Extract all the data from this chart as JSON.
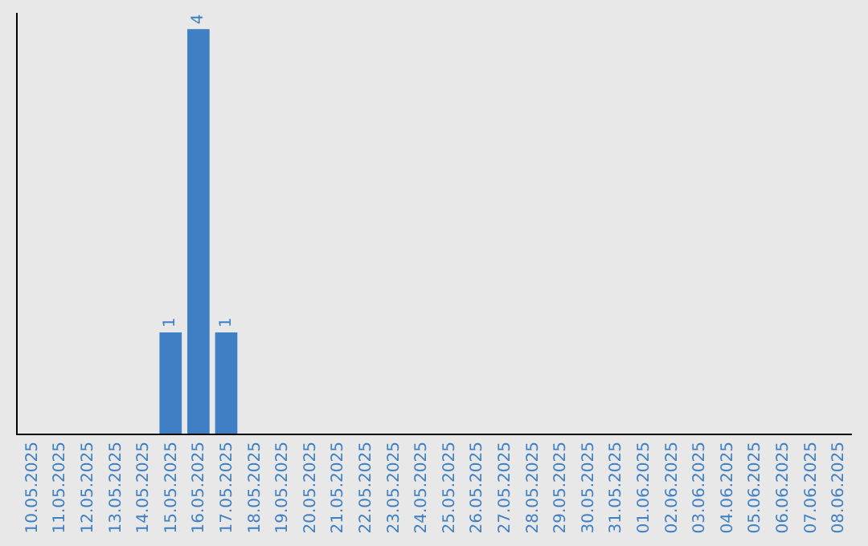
{
  "chart_data": {
    "type": "bar",
    "categories": [
      "10.05.2025",
      "11.05.2025",
      "12.05.2025",
      "13.05.2025",
      "14.05.2025",
      "15.05.2025",
      "16.05.2025",
      "17.05.2025",
      "18.05.2025",
      "19.05.2025",
      "20.05.2025",
      "21.05.2025",
      "22.05.2025",
      "23.05.2025",
      "24.05.2025",
      "25.05.2025",
      "26.05.2025",
      "27.05.2025",
      "28.05.2025",
      "29.05.2025",
      "30.05.2025",
      "31.05.2025",
      "01.06.2025",
      "02.06.2025",
      "03.06.2025",
      "04.06.2025",
      "05.06.2025",
      "06.06.2025",
      "07.06.2025",
      "08.06.2025"
    ],
    "values": [
      0,
      0,
      0,
      0,
      0,
      1,
      4,
      1,
      0,
      0,
      0,
      0,
      0,
      0,
      0,
      0,
      0,
      0,
      0,
      0,
      0,
      0,
      0,
      0,
      0,
      0,
      0,
      0,
      0,
      0
    ],
    "value_labels": [
      null,
      null,
      null,
      null,
      null,
      "1",
      "4",
      "1",
      null,
      null,
      null,
      null,
      null,
      null,
      null,
      null,
      null,
      null,
      null,
      null,
      null,
      null,
      null,
      null,
      null,
      null,
      null,
      null,
      null,
      null
    ],
    "color": "#3f7fc4",
    "grid": false,
    "legend": false,
    "tick_labels": "x"
  }
}
